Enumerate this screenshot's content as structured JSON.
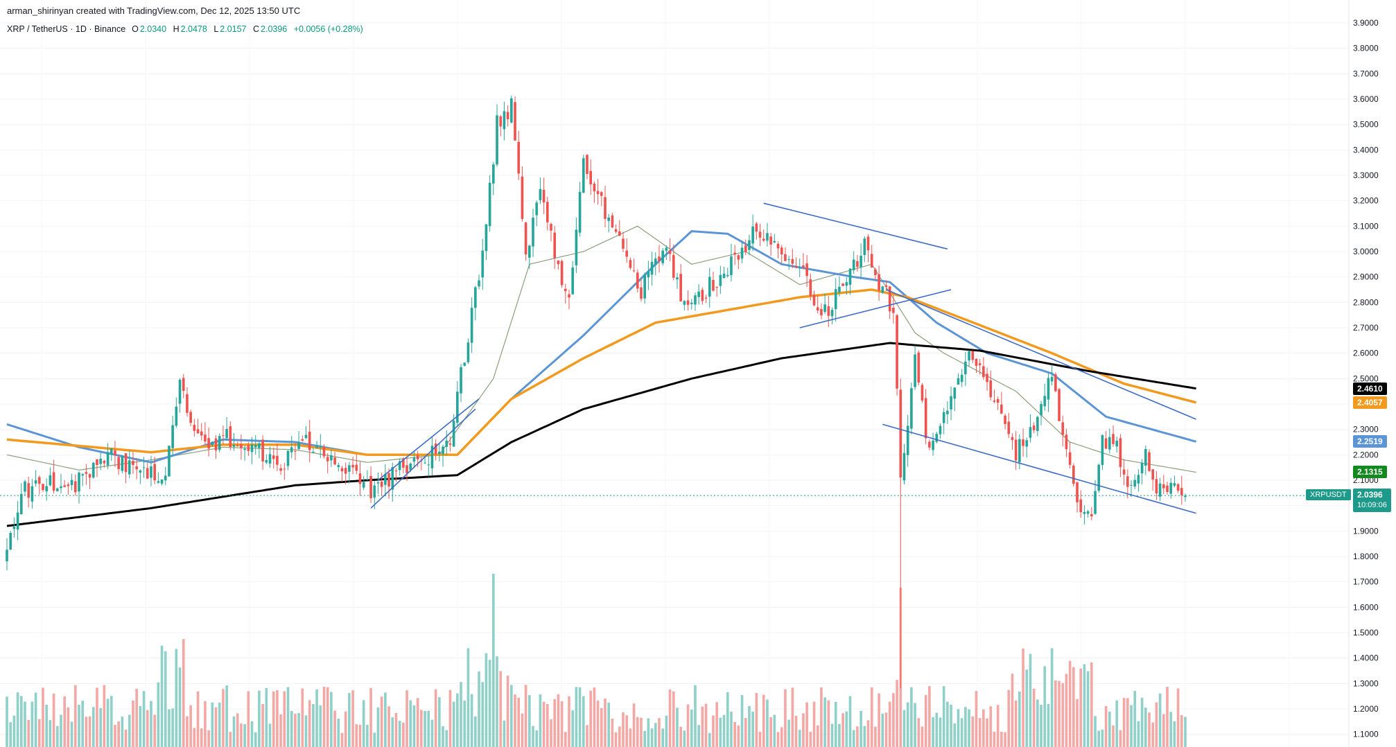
{
  "header": {
    "attribution": "arman_shirinyan created with TradingView.com, Dec 12, 2025 13:50 UTC",
    "symbol": "XRP / TetherUS · 1D · Binance",
    "open_key": "O",
    "open": "2.0340",
    "high_key": "H",
    "high": "2.0478",
    "low_key": "L",
    "low": "2.0157",
    "close_key": "C",
    "close": "2.0396",
    "change": "+0.0056 (+0.28%)"
  },
  "price_tags": {
    "ma_black": "2.4610",
    "ma_orange": "2.4057",
    "ma_blue": "2.2519",
    "ma_green": "2.1315",
    "symbol_tag": "XRPUSDT",
    "last_price": "2.0396",
    "countdown": "10:09:06"
  },
  "colors": {
    "up": "#26a69a",
    "down": "#ef5350",
    "vol_up": "#8fd0c9",
    "vol_down": "#f4a8a5",
    "ma_black": "#000000",
    "ma_orange": "#f29a1e",
    "ma_blue": "#5b95d6",
    "ma_green": "#8a9f7a",
    "trendline": "#3d6bc4",
    "last_tag": "#1e9a8a",
    "green_tag": "#138a1f"
  },
  "chart_data": {
    "type": "candlestick",
    "title": "XRP / TetherUS · 1D · Binance",
    "y_axis": {
      "ylim": [
        1.05,
        3.9
      ],
      "ticks": [
        "3.9000",
        "3.8000",
        "3.7000",
        "3.6000",
        "3.5000",
        "3.4000",
        "3.3000",
        "3.2000",
        "3.1000",
        "3.0000",
        "2.9000",
        "2.8000",
        "2.7000",
        "2.6000",
        "2.5000",
        "2.4000",
        "2.3000",
        "2.2000",
        "2.1000",
        "2.0000",
        "1.9000",
        "1.8000",
        "1.7000",
        "1.6000",
        "1.5000",
        "1.4000",
        "1.3000",
        "1.2000",
        "1.1000"
      ]
    },
    "grid": true,
    "series": [
      {
        "name": "XRPUSDT",
        "style": "candles",
        "close_anchors": [
          [
            0,
            1.82
          ],
          [
            4,
            2.05
          ],
          [
            10,
            2.1
          ],
          [
            18,
            2.08
          ],
          [
            28,
            2.2
          ],
          [
            36,
            2.15
          ],
          [
            44,
            2.13
          ],
          [
            48,
            2.5
          ],
          [
            52,
            2.3
          ],
          [
            55,
            2.22
          ],
          [
            60,
            2.27
          ],
          [
            70,
            2.22
          ],
          [
            75,
            2.15
          ],
          [
            82,
            2.25
          ],
          [
            88,
            2.2
          ],
          [
            96,
            2.13
          ],
          [
            102,
            2.05
          ],
          [
            110,
            2.15
          ],
          [
            118,
            2.2
          ],
          [
            123,
            2.25
          ],
          [
            127,
            2.6
          ],
          [
            132,
            3.0
          ],
          [
            136,
            3.5
          ],
          [
            140,
            3.57
          ],
          [
            144,
            3.0
          ],
          [
            148,
            3.23
          ],
          [
            152,
            3.0
          ],
          [
            156,
            2.8
          ],
          [
            160,
            3.33
          ],
          [
            164,
            3.2
          ],
          [
            170,
            3.08
          ],
          [
            176,
            2.85
          ],
          [
            182,
            3.03
          ],
          [
            188,
            2.8
          ],
          [
            194,
            2.85
          ],
          [
            198,
            2.9
          ],
          [
            203,
            2.98
          ],
          [
            208,
            3.1
          ],
          [
            214,
            3.0
          ],
          [
            220,
            2.95
          ],
          [
            226,
            2.75
          ],
          [
            232,
            2.85
          ],
          [
            238,
            3.03
          ],
          [
            243,
            2.85
          ],
          [
            246,
            2.78
          ],
          [
            248,
            2.1
          ],
          [
            252,
            2.6
          ],
          [
            256,
            2.2
          ],
          [
            262,
            2.4
          ],
          [
            266,
            2.6
          ],
          [
            270,
            2.55
          ],
          [
            274,
            2.4
          ],
          [
            280,
            2.2
          ],
          [
            286,
            2.35
          ],
          [
            290,
            2.5
          ],
          [
            294,
            2.2
          ],
          [
            298,
            1.98
          ],
          [
            301,
            1.95
          ],
          [
            304,
            2.25
          ],
          [
            308,
            2.22
          ],
          [
            312,
            2.05
          ],
          [
            316,
            2.2
          ],
          [
            320,
            2.05
          ],
          [
            324,
            2.1
          ],
          [
            327,
            2.04
          ]
        ],
        "n_candles": 328
      },
      {
        "name": "MA-black",
        "style": "line",
        "last": 2.461
      },
      {
        "name": "MA-orange",
        "style": "line",
        "last": 2.4057
      },
      {
        "name": "MA-blue",
        "style": "line",
        "last": 2.2519
      },
      {
        "name": "MA-green",
        "style": "line",
        "last": 2.1315
      },
      {
        "name": "volume",
        "style": "histogram"
      }
    ],
    "trendlines": [
      {
        "from": [
          101,
          1.99
        ],
        "to": [
          130,
          2.38
        ]
      },
      {
        "from": [
          103,
          2.1
        ],
        "to": [
          131,
          2.42
        ]
      },
      {
        "from": [
          210,
          3.19
        ],
        "to": [
          261,
          3.01
        ]
      },
      {
        "from": [
          220,
          2.7
        ],
        "to": [
          262,
          2.85
        ]
      },
      {
        "from": [
          244,
          2.85
        ],
        "to": [
          330,
          2.34
        ]
      },
      {
        "from": [
          243,
          2.32
        ],
        "to": [
          330,
          1.97
        ]
      }
    ],
    "moving_average_anchors": {
      "ma_black": [
        [
          0,
          1.92
        ],
        [
          40,
          1.99
        ],
        [
          80,
          2.08
        ],
        [
          100,
          2.1
        ],
        [
          125,
          2.12
        ],
        [
          140,
          2.25
        ],
        [
          160,
          2.38
        ],
        [
          190,
          2.5
        ],
        [
          215,
          2.58
        ],
        [
          245,
          2.64
        ],
        [
          270,
          2.61
        ],
        [
          300,
          2.53
        ],
        [
          330,
          2.461
        ]
      ],
      "ma_orange": [
        [
          0,
          2.26
        ],
        [
          40,
          2.21
        ],
        [
          60,
          2.24
        ],
        [
          80,
          2.24
        ],
        [
          100,
          2.2
        ],
        [
          125,
          2.2
        ],
        [
          140,
          2.42
        ],
        [
          160,
          2.58
        ],
        [
          180,
          2.72
        ],
        [
          200,
          2.77
        ],
        [
          220,
          2.82
        ],
        [
          240,
          2.85
        ],
        [
          250,
          2.82
        ],
        [
          270,
          2.71
        ],
        [
          290,
          2.6
        ],
        [
          310,
          2.48
        ],
        [
          330,
          2.4057
        ]
      ],
      "ma_blue": [
        [
          0,
          2.32
        ],
        [
          20,
          2.23
        ],
        [
          40,
          2.17
        ],
        [
          60,
          2.26
        ],
        [
          80,
          2.25
        ],
        [
          100,
          2.2
        ],
        [
          125,
          2.2
        ],
        [
          140,
          2.42
        ],
        [
          160,
          2.67
        ],
        [
          180,
          2.95
        ],
        [
          190,
          3.08
        ],
        [
          200,
          3.07
        ],
        [
          215,
          2.95
        ],
        [
          235,
          2.9
        ],
        [
          245,
          2.88
        ],
        [
          258,
          2.72
        ],
        [
          272,
          2.6
        ],
        [
          290,
          2.52
        ],
        [
          305,
          2.35
        ],
        [
          330,
          2.2519
        ]
      ],
      "ma_green": [
        [
          0,
          2.2
        ],
        [
          20,
          2.14
        ],
        [
          40,
          2.18
        ],
        [
          60,
          2.23
        ],
        [
          80,
          2.22
        ],
        [
          100,
          2.17
        ],
        [
          120,
          2.2
        ],
        [
          135,
          2.5
        ],
        [
          145,
          2.95
        ],
        [
          160,
          3.0
        ],
        [
          175,
          3.1
        ],
        [
          190,
          2.95
        ],
        [
          205,
          3.0
        ],
        [
          220,
          2.87
        ],
        [
          240,
          2.95
        ],
        [
          252,
          2.68
        ],
        [
          260,
          2.6
        ],
        [
          280,
          2.45
        ],
        [
          295,
          2.25
        ],
        [
          310,
          2.18
        ],
        [
          330,
          2.1315
        ]
      ]
    }
  }
}
